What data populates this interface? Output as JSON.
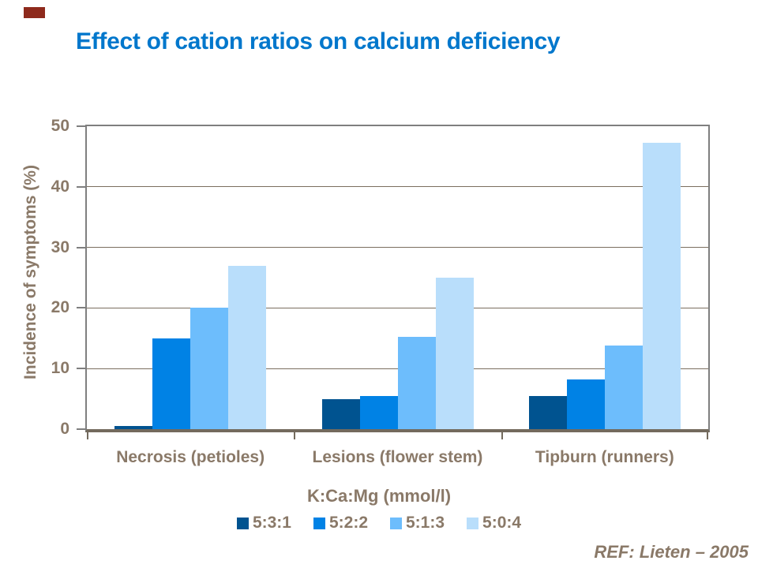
{
  "slide": {
    "title": "Effect of cation ratios on calcium deficiency",
    "title_color": "#0077CC",
    "text_color": "#8A7968",
    "reference": "REF: Lieten – 2005",
    "corner_mark_color": "#8E2A1C"
  },
  "chart_data": {
    "type": "bar",
    "title": "Effect of cation ratios on calcium deficiency",
    "categories": [
      "Necrosis (petioles)",
      "Lesions (flower stem)",
      "Tipburn (runners)"
    ],
    "series": [
      {
        "name": "5:3:1",
        "color": "#005390",
        "values": [
          0.5,
          4.9,
          5.5
        ]
      },
      {
        "name": "5:2:2",
        "color": "#0082E5",
        "values": [
          15,
          5.5,
          8.2
        ]
      },
      {
        "name": "5:1:3",
        "color": "#6DBDFC",
        "values": [
          20,
          15.3,
          13.8
        ]
      },
      {
        "name": "5:0:4",
        "color": "#B9DEFB",
        "values": [
          27,
          25,
          47.3
        ]
      }
    ],
    "xlabel": "K:Ca:Mg (mmol/l)",
    "ylabel": "Incidence of symptoms (%)",
    "ylim": [
      0,
      50
    ],
    "yticks": [
      0,
      10,
      20,
      30,
      40,
      50
    ],
    "grid": true,
    "legend_position": "bottom",
    "frame_color": "#7F7F7F",
    "gridline_color": "#7A6E5F",
    "axis_line_color": "#736A5D"
  }
}
